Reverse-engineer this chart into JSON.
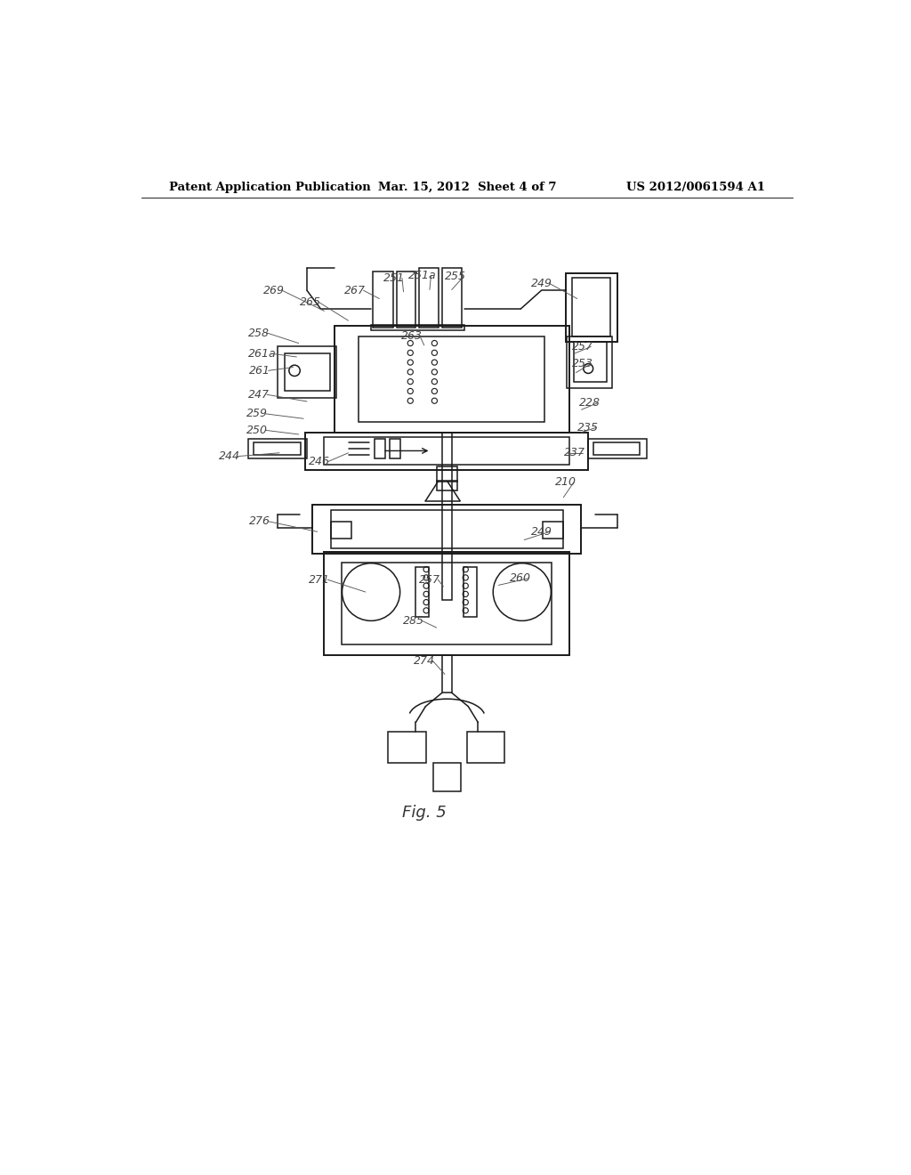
{
  "page_title_left": "Patent Application Publication",
  "page_title_center": "Mar. 15, 2012  Sheet 4 of 7",
  "page_title_right": "US 2012/0061594 A1",
  "fig_label": "Fig. 5",
  "background_color": "#ffffff",
  "line_color": "#1a1a1a",
  "label_color": "#444444",
  "leader_color": "#555555",
  "title_color": "#000000"
}
